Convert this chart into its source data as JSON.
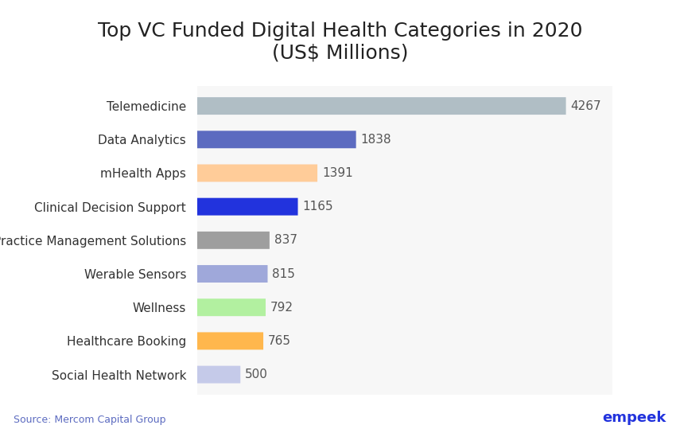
{
  "title": "Top VC Funded Digital Health Categories in 2020\n(US$ Millions)",
  "categories": [
    "Telemedicine",
    "Data Analytics",
    "mHealth Apps",
    "Clinical Decision Support",
    "Practice Management Solutions",
    "Werable Sensors",
    "Wellness",
    "Healthcare Booking",
    "Social Health Network"
  ],
  "values": [
    4267,
    1838,
    1391,
    1165,
    837,
    815,
    792,
    765,
    500
  ],
  "colors": [
    "#b0bec5",
    "#5c6bc0",
    "#ffcc99",
    "#2233dd",
    "#9e9e9e",
    "#9fa8da",
    "#b2f0a0",
    "#ffb74d",
    "#c5cae9"
  ],
  "background_color": "#ffffff",
  "chart_bg_color": "#f7f7f7",
  "title_fontsize": 18,
  "label_fontsize": 11,
  "value_fontsize": 11,
  "source_text": "Source: Mercom Capital Group",
  "brand_text": "empeek",
  "xlim": [
    0,
    4800
  ]
}
